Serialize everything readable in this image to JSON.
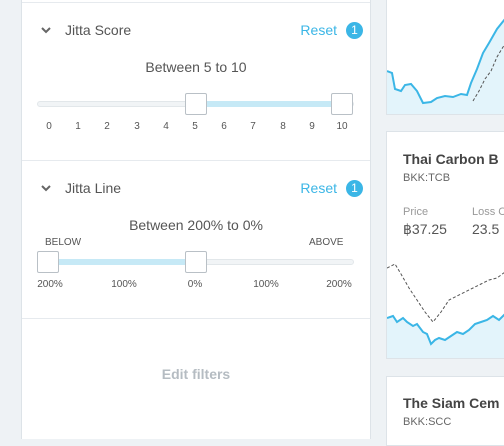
{
  "filters": {
    "jitta_score": {
      "title": "Jitta Score",
      "reset_label": "Reset",
      "badge_count": "1",
      "range_text": "Between 5 to 10",
      "ticks": [
        "0",
        "1",
        "2",
        "3",
        "4",
        "5",
        "6",
        "7",
        "8",
        "9",
        "10"
      ],
      "range_min": 0,
      "range_max": 10,
      "value_low": 5,
      "value_high": 10
    },
    "jitta_line": {
      "title": "Jitta Line",
      "reset_label": "Reset",
      "badge_count": "1",
      "range_text": "Between 200% to 0%",
      "below_label": "BELOW",
      "above_label": "ABOVE",
      "ticks": [
        "200%",
        "100%",
        "0%",
        "100%",
        "200%"
      ],
      "value_low": "200%",
      "value_high": "0%"
    },
    "edit_filters_label": "Edit filters"
  },
  "stock_cards": [
    {
      "name": "",
      "ticker": ""
    },
    {
      "name": "Thai Carbon B",
      "ticker": "BKK:TCB",
      "price_label": "Price",
      "price_value": "฿37.25",
      "loss_label": "Loss C",
      "loss_value": "23.5"
    },
    {
      "name": "The Siam Cem",
      "ticker": "BKK:SCC"
    }
  ],
  "colors": {
    "accent": "#3bb6e6",
    "range_fill": "#c6e9f6",
    "chart_line": "#3bb6e6",
    "chart_area": "#e3f4fb"
  }
}
